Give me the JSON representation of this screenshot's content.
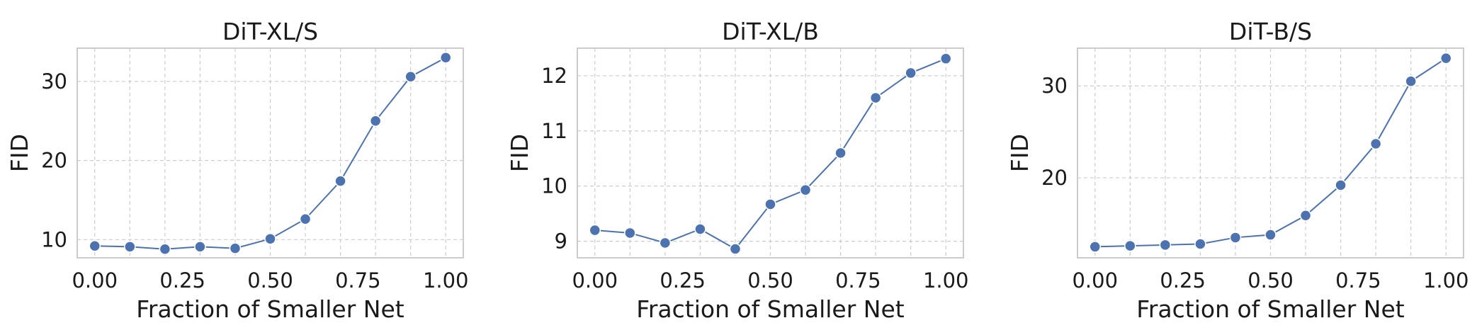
{
  "chart_data": [
    {
      "type": "line",
      "title": "DiT-XL/S",
      "xlabel": "Fraction of Smaller Net",
      "ylabel": "FID",
      "x": [
        0.0,
        0.1,
        0.2,
        0.3,
        0.4,
        0.5,
        0.6,
        0.7,
        0.8,
        0.9,
        1.0
      ],
      "y": [
        9.2,
        9.1,
        8.8,
        9.1,
        8.9,
        10.1,
        12.6,
        17.4,
        25.0,
        30.6,
        33.0
      ],
      "xlim": [
        -0.05,
        1.05
      ],
      "ylim": [
        7.7,
        34.2
      ],
      "xticks": [
        "0.00",
        "0.25",
        "0.50",
        "0.75",
        "1.00"
      ],
      "yticks": [
        "10",
        "20",
        "30"
      ],
      "grid": true
    },
    {
      "type": "line",
      "title": "DiT-XL/B",
      "xlabel": "Fraction of Smaller Net",
      "ylabel": "FID",
      "x": [
        0.0,
        0.1,
        0.2,
        0.3,
        0.4,
        0.5,
        0.6,
        0.7,
        0.8,
        0.9,
        1.0
      ],
      "y": [
        9.2,
        9.15,
        8.97,
        9.22,
        8.86,
        9.67,
        9.93,
        10.6,
        11.6,
        12.05,
        12.31
      ],
      "xlim": [
        -0.05,
        1.05
      ],
      "ylim": [
        8.7,
        12.5
      ],
      "xticks": [
        "0.00",
        "0.25",
        "0.50",
        "0.75",
        "1.00"
      ],
      "yticks": [
        "9",
        "10",
        "11",
        "12"
      ],
      "grid": true
    },
    {
      "type": "line",
      "title": "DiT-B/S",
      "xlabel": "Fraction of Smaller Net",
      "ylabel": "FID",
      "x": [
        0.0,
        0.1,
        0.2,
        0.3,
        0.4,
        0.5,
        0.6,
        0.7,
        0.8,
        0.9,
        1.0
      ],
      "y": [
        12.5,
        12.6,
        12.7,
        12.8,
        13.5,
        13.8,
        15.9,
        19.2,
        23.7,
        30.5,
        33.0
      ],
      "xlim": [
        -0.05,
        1.05
      ],
      "ylim": [
        11.3,
        34.1
      ],
      "xticks": [
        "0.00",
        "0.25",
        "0.50",
        "0.75",
        "1.00"
      ],
      "yticks": [
        "20",
        "30"
      ],
      "grid": true
    }
  ]
}
